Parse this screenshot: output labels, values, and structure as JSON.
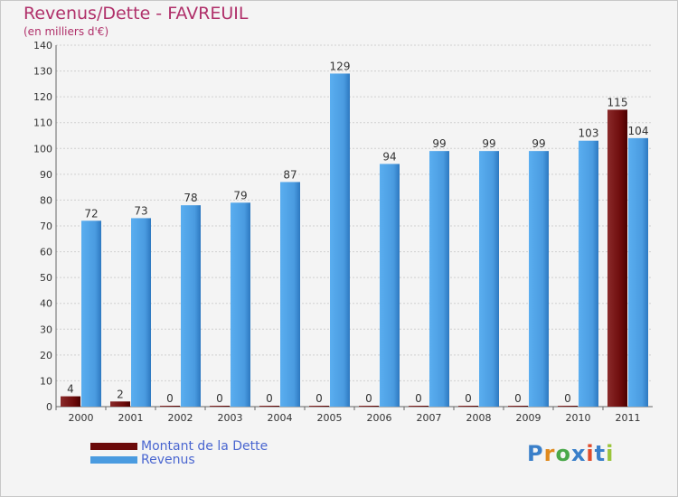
{
  "chart_data": {
    "type": "bar",
    "title": "Revenus/Dette - FAVREUIL",
    "subtitle": "(en milliers d'€)",
    "categories": [
      "2000",
      "2001",
      "2002",
      "2003",
      "2004",
      "2005",
      "2006",
      "2007",
      "2008",
      "2009",
      "2010",
      "2011"
    ],
    "series": [
      {
        "name": "Montant de la Dette",
        "color": "#6b0a0a",
        "values": [
          4,
          2,
          0,
          0,
          0,
          0,
          0,
          0,
          0,
          0,
          0,
          115
        ]
      },
      {
        "name": "Revenus",
        "color": "#4a9be0",
        "values": [
          72,
          73,
          78,
          79,
          87,
          129,
          94,
          99,
          99,
          99,
          103,
          104
        ]
      }
    ],
    "ylim": [
      0,
      140
    ],
    "yticks": [
      0,
      10,
      20,
      30,
      40,
      50,
      60,
      70,
      80,
      90,
      100,
      110,
      120,
      130,
      140
    ],
    "grid": true,
    "legend_position": "bottom-left"
  },
  "branding": {
    "logo_text": "Proxiti",
    "logo_colors": [
      "#3a7fc9",
      "#e08a1e",
      "#4aa84a",
      "#3a7fc9",
      "#e04a2a",
      "#3a7fc9",
      "#9ac43a"
    ]
  }
}
